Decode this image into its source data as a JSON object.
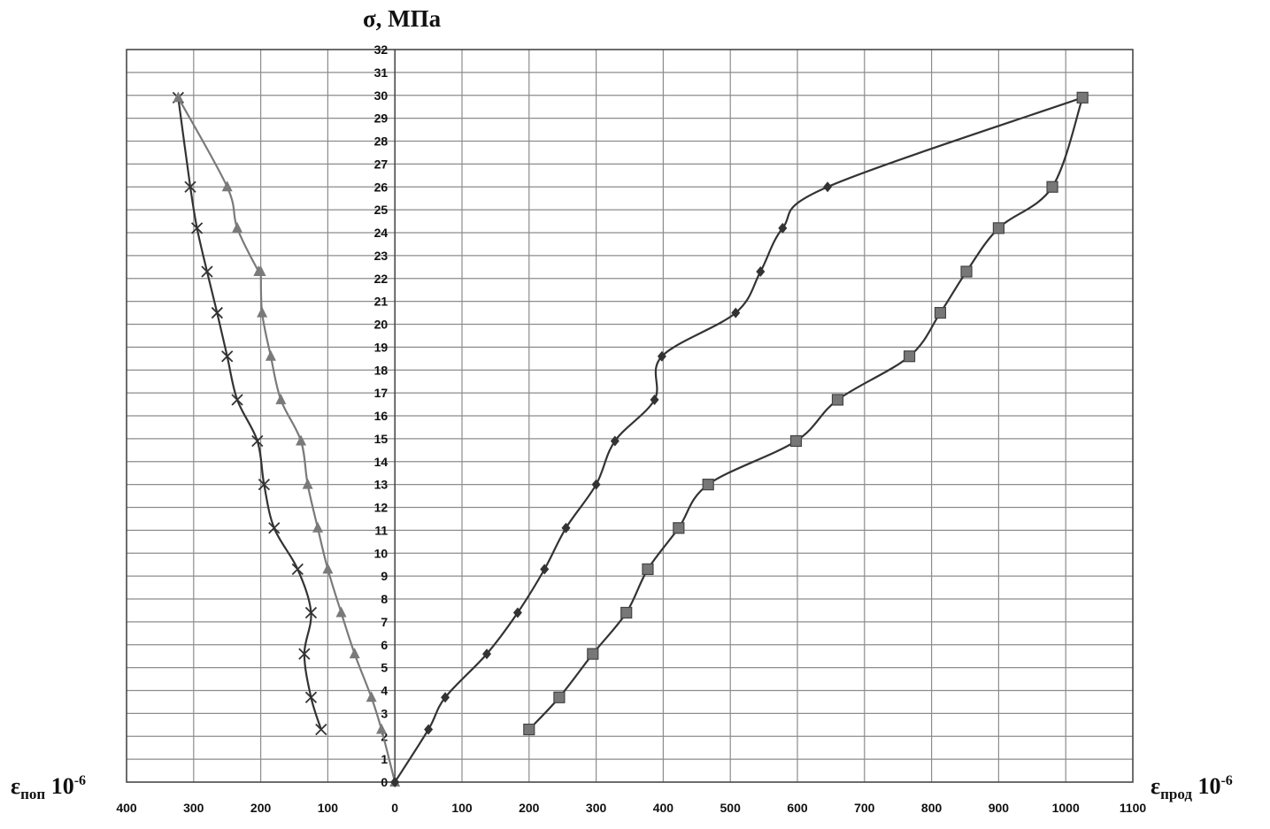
{
  "chart_data": {
    "type": "line",
    "ylabel": "σ, МПа",
    "xlabel_left": {
      "main": "ε",
      "sub": "поп",
      "base": " 10",
      "sup": "-6"
    },
    "xlabel_right": {
      "main": "ε",
      "sub": "прод",
      "base": " 10",
      "sup": "-6"
    },
    "x_ticks": [
      "400",
      "300",
      "200",
      "100",
      "0",
      "100",
      "200",
      "300",
      "400",
      "500",
      "600",
      "700",
      "800",
      "900",
      "1000",
      "1100"
    ],
    "x_tick_values": [
      -400,
      -300,
      -200,
      -100,
      0,
      100,
      200,
      300,
      400,
      500,
      600,
      700,
      800,
      900,
      1000,
      1100
    ],
    "xlim": [
      -400,
      1100
    ],
    "ylim": [
      0,
      32
    ],
    "y_ticks": [
      0,
      1,
      2,
      3,
      4,
      5,
      6,
      7,
      8,
      9,
      10,
      11,
      12,
      13,
      14,
      15,
      16,
      17,
      18,
      19,
      20,
      21,
      22,
      23,
      24,
      25,
      26,
      27,
      28,
      29,
      30,
      31,
      32
    ],
    "grid": true,
    "series": [
      {
        "marker": "cross",
        "color": "#333333",
        "x": [
          -110,
          -125,
          -135,
          -125,
          -145,
          -180,
          -195,
          -205,
          -235,
          -250,
          -265,
          -280,
          -295,
          -305,
          -323
        ],
        "y": [
          2.3,
          3.7,
          5.6,
          7.4,
          9.3,
          11.1,
          13,
          14.9,
          16.7,
          18.6,
          20.5,
          22.3,
          24.2,
          26,
          29.9
        ]
      },
      {
        "marker": "triangle",
        "color": "#7a7a7a",
        "x": [
          0,
          -20,
          -35,
          -60,
          -80,
          -100,
          -115,
          -130,
          -140,
          -170,
          -185,
          -198,
          -200,
          -203,
          -235,
          -250,
          -323
        ],
        "y": [
          0,
          2.3,
          3.7,
          5.6,
          7.4,
          9.3,
          11.1,
          13,
          14.9,
          16.7,
          18.6,
          20.5,
          22.3,
          22.3,
          24.2,
          26,
          29.9
        ]
      },
      {
        "marker": "diamond",
        "color": "#333333",
        "x": [
          0,
          50,
          75,
          137,
          183,
          223,
          255,
          300,
          328,
          387,
          398,
          508,
          545,
          578,
          645,
          1025
        ],
        "y": [
          0,
          2.3,
          3.7,
          5.6,
          7.4,
          9.3,
          11.1,
          13,
          14.9,
          16.7,
          18.6,
          20.5,
          22.3,
          24.2,
          26,
          29.9
        ]
      },
      {
        "marker": "square",
        "color": "#333333",
        "x": [
          200,
          245,
          295,
          345,
          377,
          423,
          467,
          598,
          660,
          767,
          813,
          852,
          900,
          980,
          1025
        ],
        "y": [
          2.3,
          3.7,
          5.6,
          7.4,
          9.3,
          11.1,
          13,
          14.9,
          16.7,
          18.6,
          20.5,
          22.3,
          24.2,
          26,
          29.9
        ]
      }
    ]
  }
}
